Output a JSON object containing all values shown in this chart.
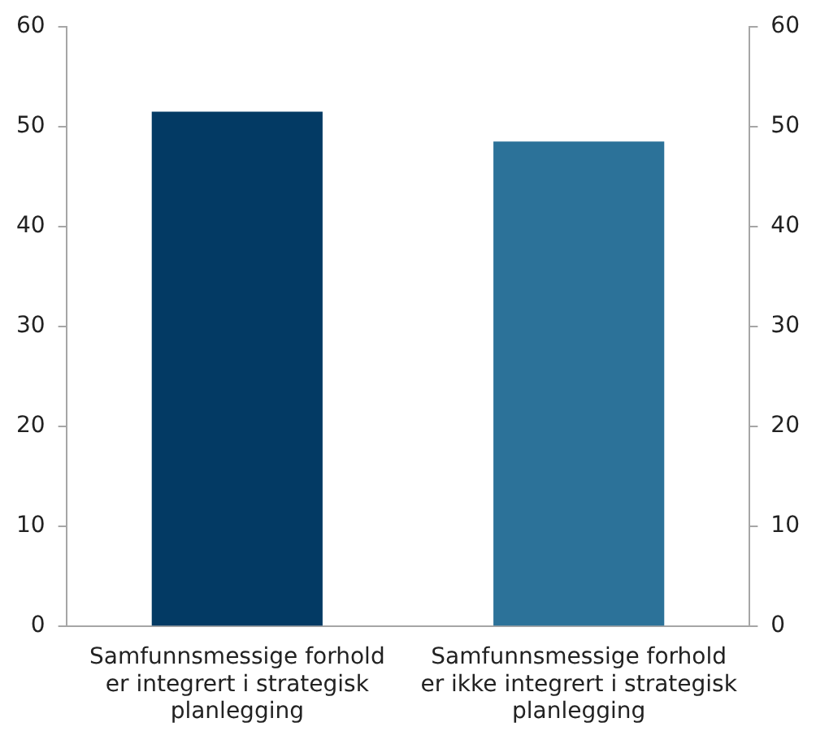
{
  "chart_data": {
    "type": "bar",
    "categories": [
      "Samfunnsmessige forhold er integrert i strategisk planlegging",
      "Samfunnsmessige forhold er ikke integrert i strategisk planlegging"
    ],
    "values": [
      51.5,
      48.5
    ],
    "colors": [
      "#033a64",
      "#2c7299"
    ],
    "ylim": [
      0,
      60
    ],
    "yticks": [
      0,
      10,
      20,
      30,
      40,
      50,
      60
    ],
    "y2lim": [
      0,
      60
    ],
    "y2ticks": [
      0,
      10,
      20,
      30,
      40,
      50,
      60
    ],
    "grid": false,
    "legend": false
  }
}
